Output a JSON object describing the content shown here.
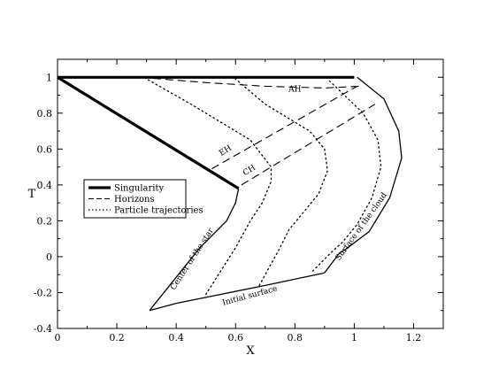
{
  "chart_data": {
    "type": "line",
    "title": "",
    "xlabel": "X",
    "ylabel": "T",
    "xlim": [
      0,
      1.3
    ],
    "ylim": [
      -0.4,
      1.1
    ],
    "xticks": [
      0,
      0.2,
      0.4,
      0.6,
      0.8,
      1,
      1.2
    ],
    "yticks": [
      -0.4,
      -0.2,
      0,
      0.2,
      0.4,
      0.6,
      0.8,
      1
    ],
    "xtick_labels": [
      "0",
      "0.2",
      "0.4",
      "0.6",
      "0.8",
      "1",
      "1.2"
    ],
    "ytick_labels": [
      "-0.4",
      "-0.2",
      "0",
      "0.2",
      "0.4",
      "0.6",
      "0.8",
      "1"
    ],
    "grid": false,
    "legend": {
      "placement": "center-left",
      "entries": [
        {
          "label": "Singularity",
          "style": "thick-solid"
        },
        {
          "label": "Horizons",
          "style": "dashed"
        },
        {
          "label": "Particle trajectories",
          "style": "dotted"
        }
      ]
    },
    "series": [
      {
        "id": "singularity-top",
        "style": "thick-solid",
        "x": [
          0,
          1.0
        ],
        "y": [
          1.0,
          1.0
        ]
      },
      {
        "id": "singularity-diag",
        "style": "thick-solid",
        "x": [
          0,
          0.61
        ],
        "y": [
          1.0,
          0.38
        ]
      },
      {
        "id": "center-of-star",
        "style": "solid",
        "x": [
          0.61,
          0.6,
          0.57,
          0.48,
          0.31
        ],
        "y": [
          0.38,
          0.3,
          0.2,
          0.05,
          -0.3
        ]
      },
      {
        "id": "initial-surface",
        "style": "solid",
        "x": [
          0.31,
          0.4,
          0.55,
          0.7,
          0.9
        ],
        "y": [
          -0.3,
          -0.26,
          -0.21,
          -0.16,
          -0.09
        ]
      },
      {
        "id": "surface-of-cloud",
        "style": "solid",
        "x": [
          0.9,
          0.95,
          0.97,
          1.05,
          1.12,
          1.16,
          1.15,
          1.1,
          1.01
        ],
        "y": [
          -0.09,
          0.02,
          0.04,
          0.14,
          0.33,
          0.55,
          0.7,
          0.88,
          1.0
        ]
      },
      {
        "id": "horizon-ah",
        "style": "dashed",
        "x": [
          0.28,
          0.5,
          0.7,
          0.9,
          1.02
        ],
        "y": [
          1.0,
          0.97,
          0.95,
          0.94,
          0.95
        ]
      },
      {
        "id": "horizon-eh",
        "style": "dashed",
        "x": [
          0.52,
          1.01
        ],
        "y": [
          0.49,
          0.95
        ]
      },
      {
        "id": "horizon-ch",
        "style": "dashed",
        "x": [
          0.62,
          1.07
        ],
        "y": [
          0.4,
          0.85
        ]
      },
      {
        "id": "trajectory-1",
        "style": "dotted",
        "x": [
          0.5,
          0.6,
          0.65,
          0.69,
          0.72,
          0.72,
          0.65,
          0.45,
          0.29
        ],
        "y": [
          -0.21,
          0.05,
          0.2,
          0.3,
          0.42,
          0.5,
          0.65,
          0.85,
          1.0
        ]
      },
      {
        "id": "trajectory-2",
        "style": "dotted",
        "x": [
          0.68,
          0.75,
          0.78,
          0.83,
          0.88,
          0.91,
          0.9,
          0.85,
          0.7,
          0.6
        ],
        "y": [
          -0.16,
          0.05,
          0.15,
          0.25,
          0.35,
          0.48,
          0.6,
          0.7,
          0.85,
          0.99
        ]
      },
      {
        "id": "trajectory-3",
        "style": "dotted",
        "x": [
          0.86,
          0.92,
          0.96,
          1.01,
          1.06,
          1.09,
          1.08,
          1.03,
          0.91
        ],
        "y": [
          -0.08,
          0.02,
          0.08,
          0.18,
          0.33,
          0.5,
          0.65,
          0.8,
          0.99
        ]
      }
    ],
    "annotations": [
      {
        "text": "AH",
        "x": 0.8,
        "y": 0.92
      },
      {
        "text": "EH",
        "x": 0.57,
        "y": 0.58
      },
      {
        "text": "CH",
        "x": 0.65,
        "y": 0.47
      },
      {
        "text": "Center of the star",
        "x": 0.46,
        "y": -0.02
      },
      {
        "text": "Initial surface",
        "x": 0.65,
        "y": -0.23
      },
      {
        "text": "Surface of the cloud",
        "x": 1.03,
        "y": 0.16
      }
    ]
  }
}
